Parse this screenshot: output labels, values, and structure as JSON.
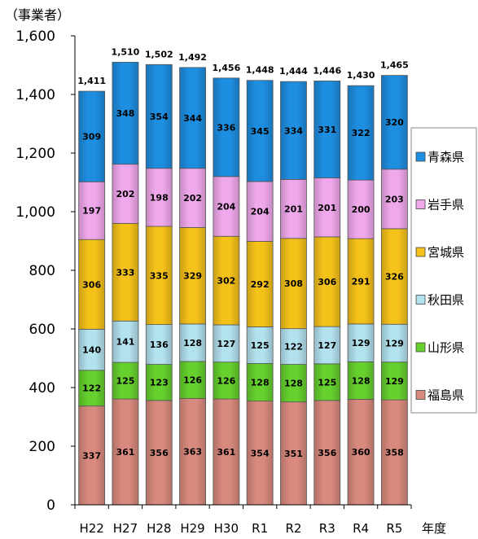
{
  "chart_data": {
    "type": "bar",
    "stacked": true,
    "ylabel": "（事業者）",
    "xlabel": "年度",
    "ylim": [
      0,
      1600
    ],
    "yticks": [
      0,
      200,
      400,
      600,
      800,
      1000,
      1200,
      1400,
      1600
    ],
    "ytick_labels": [
      "0",
      "200",
      "400",
      "600",
      "800",
      "1,000",
      "1,200",
      "1,400",
      "1,600"
    ],
    "categories": [
      "H22",
      "H27",
      "H28",
      "H29",
      "H30",
      "R1",
      "R2",
      "R3",
      "R4",
      "R5"
    ],
    "totals": [
      "1,411",
      "1,510",
      "1,502",
      "1,492",
      "1,456",
      "1,448",
      "1,444",
      "1,446",
      "1,430",
      "1,465"
    ],
    "series": [
      {
        "name": "福島県",
        "color": "#d98a7e",
        "values": [
          337,
          361,
          356,
          363,
          361,
          354,
          351,
          356,
          360,
          358
        ]
      },
      {
        "name": "山形県",
        "color": "#66d12e",
        "values": [
          122,
          125,
          123,
          126,
          126,
          128,
          128,
          125,
          128,
          129
        ]
      },
      {
        "name": "秋田県",
        "color": "#b3e2ef",
        "values": [
          140,
          141,
          136,
          128,
          127,
          125,
          122,
          127,
          129,
          129
        ]
      },
      {
        "name": "宮城県",
        "color": "#f5c21a",
        "values": [
          306,
          333,
          335,
          329,
          302,
          292,
          308,
          306,
          291,
          326
        ]
      },
      {
        "name": "岩手県",
        "color": "#f0a8ec",
        "values": [
          197,
          202,
          198,
          202,
          204,
          204,
          201,
          201,
          200,
          203
        ]
      },
      {
        "name": "青森県",
        "color": "#1e8ee0",
        "values": [
          309,
          348,
          354,
          344,
          336,
          345,
          334,
          331,
          322,
          320
        ]
      }
    ],
    "legend": {
      "placement": "right",
      "order": [
        "青森県",
        "岩手県",
        "宮城県",
        "秋田県",
        "山形県",
        "福島県"
      ]
    }
  }
}
